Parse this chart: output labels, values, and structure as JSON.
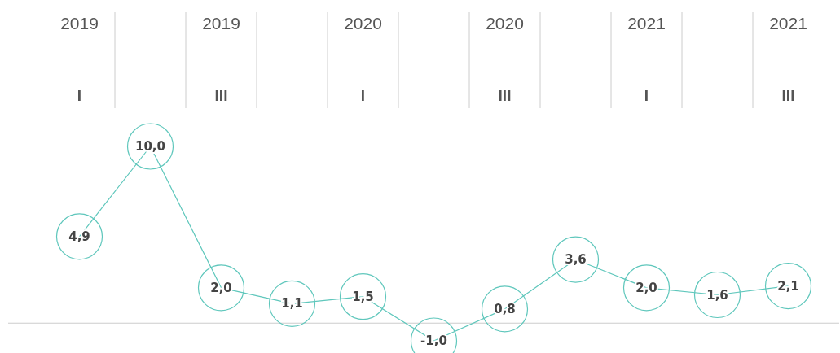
{
  "chart_data": {
    "type": "line",
    "categories": [
      "2019\nI",
      null,
      "2019\nIII",
      null,
      "2020\nI",
      null,
      "2020\nIII",
      null,
      "2021\nI",
      null,
      "2021\nIII"
    ],
    "series": [
      {
        "color": "#5fc7bc",
        "values": [
          4.9,
          10.0,
          2.0,
          1.1,
          1.5,
          -1.0,
          0.8,
          3.6,
          2.0,
          1.6,
          2.1
        ],
        "value_labels": [
          "4,9",
          "10,0",
          "2,0",
          "1,1",
          "1,5",
          "-1,0",
          "0,8",
          "3,6",
          "2,0",
          "1,6",
          "2,1"
        ]
      }
    ],
    "marker": "none"
  }
}
